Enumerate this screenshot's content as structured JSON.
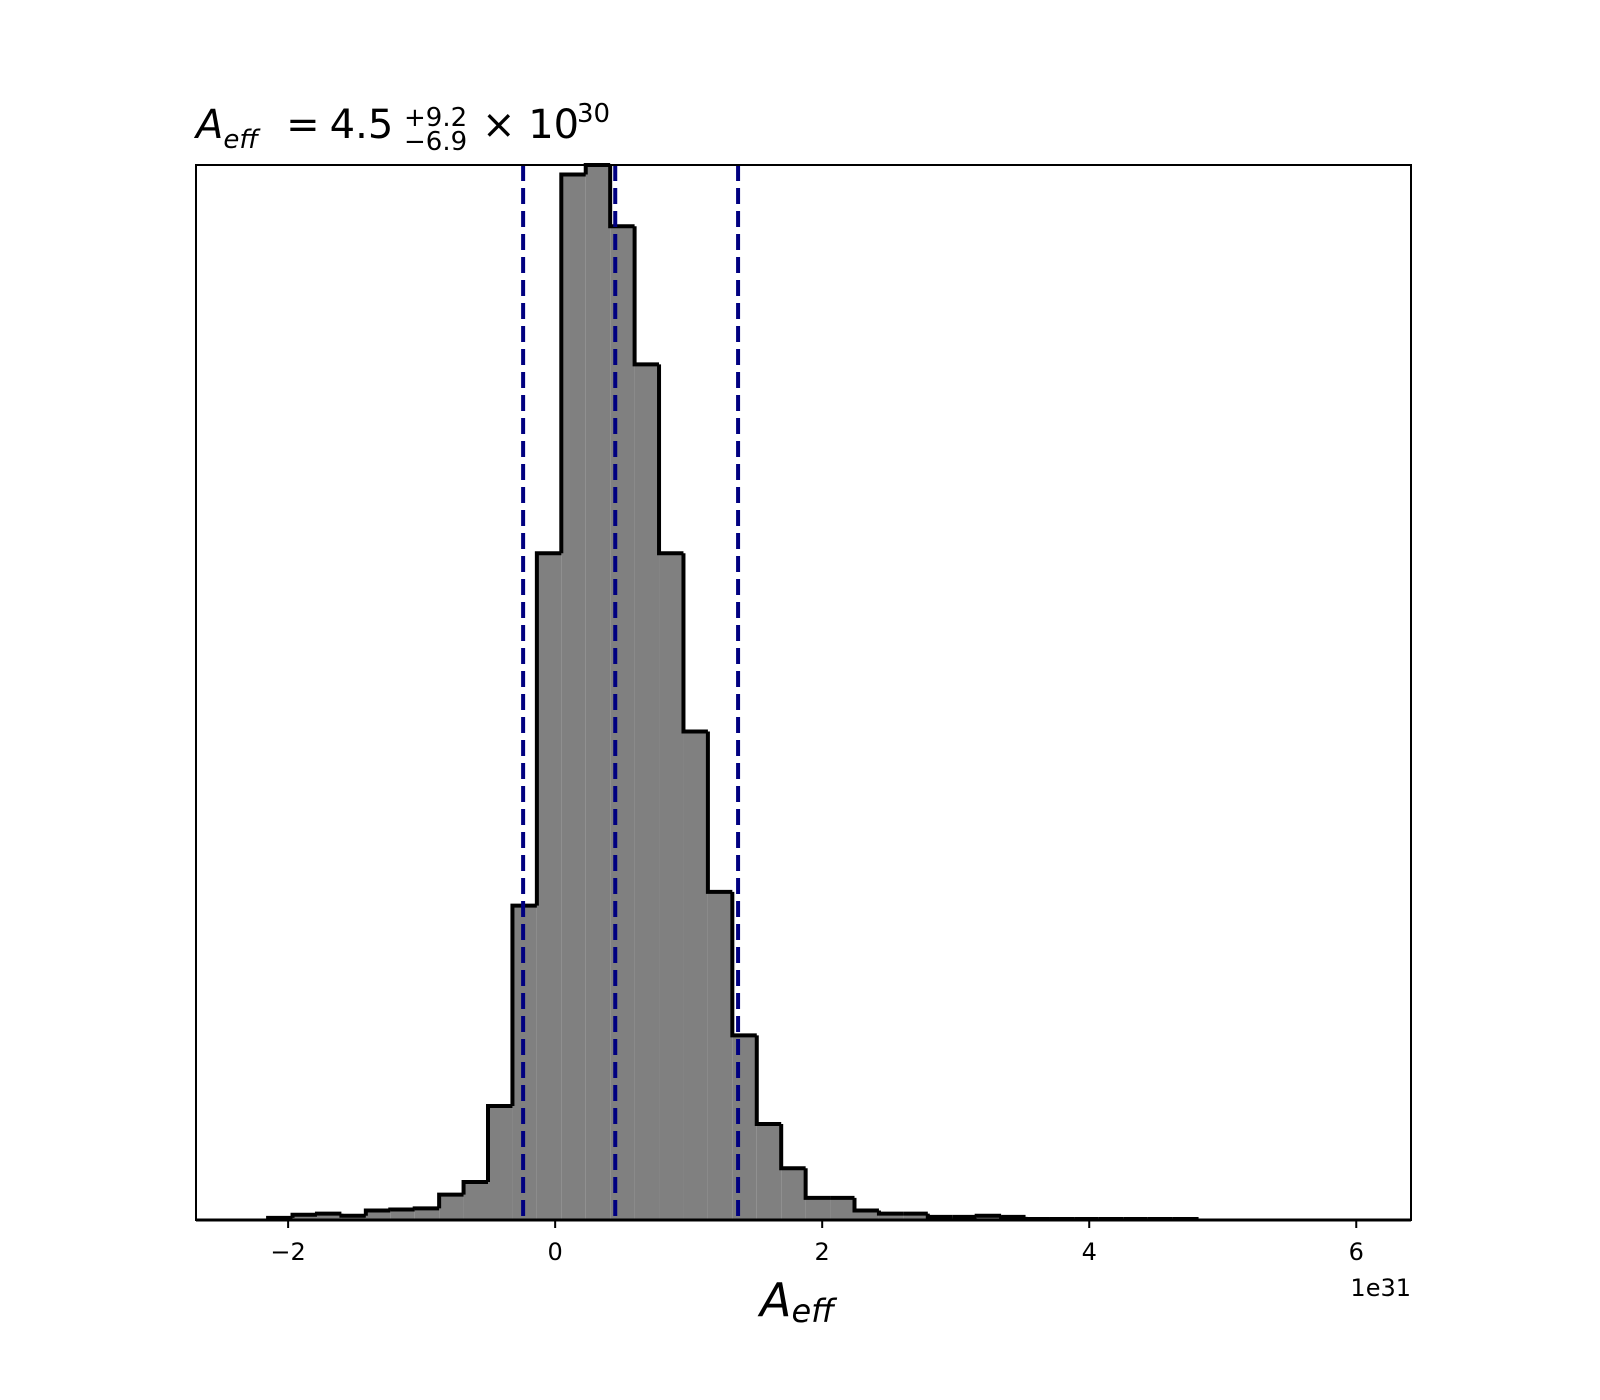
{
  "chart_data": {
    "type": "histogram",
    "title": {
      "symbol": "A",
      "subscript": "eff",
      "relation": "=",
      "value": "4.5",
      "upper": "+9.2",
      "lower": "−6.9",
      "multiplier": "× 10",
      "exponent": "30"
    },
    "xlabel": {
      "symbol": "A",
      "subscript": "eff"
    },
    "x_offset_label": "1e31",
    "bins": [
      -2.15,
      -1.967,
      -1.784,
      -1.601,
      -1.418,
      -1.235,
      -1.052,
      -0.869,
      -0.686,
      -0.503,
      -0.32,
      -0.137,
      0.046,
      0.229,
      0.412,
      0.595,
      0.778,
      0.961,
      1.144,
      1.327,
      1.51,
      1.693,
      1.876,
      2.059,
      2.242,
      2.425,
      2.608,
      2.791,
      2.974,
      3.157,
      3.34,
      3.523,
      3.706,
      3.889,
      4.072,
      4.255,
      4.438,
      4.621,
      4.804
    ],
    "values": [
      2,
      5,
      6,
      4,
      9,
      10,
      11,
      24,
      36,
      108,
      298,
      632,
      991,
      1000,
      942,
      811,
      632,
      463,
      311,
      175,
      91,
      49,
      21,
      21,
      9,
      6,
      6,
      3,
      3,
      4,
      3,
      1,
      1,
      1,
      1,
      1,
      1,
      1
    ],
    "color": "#808080",
    "edge_color": "#000000",
    "vlines": [
      -0.24,
      0.45,
      1.37
    ],
    "vline_color": "#000080",
    "xlim": [
      -2.69,
      6.41
    ],
    "xticks": [
      {
        "value": -2,
        "label": "−2"
      },
      0,
      2,
      4,
      6
    ],
    "ylim": [
      0,
      1000
    ]
  }
}
